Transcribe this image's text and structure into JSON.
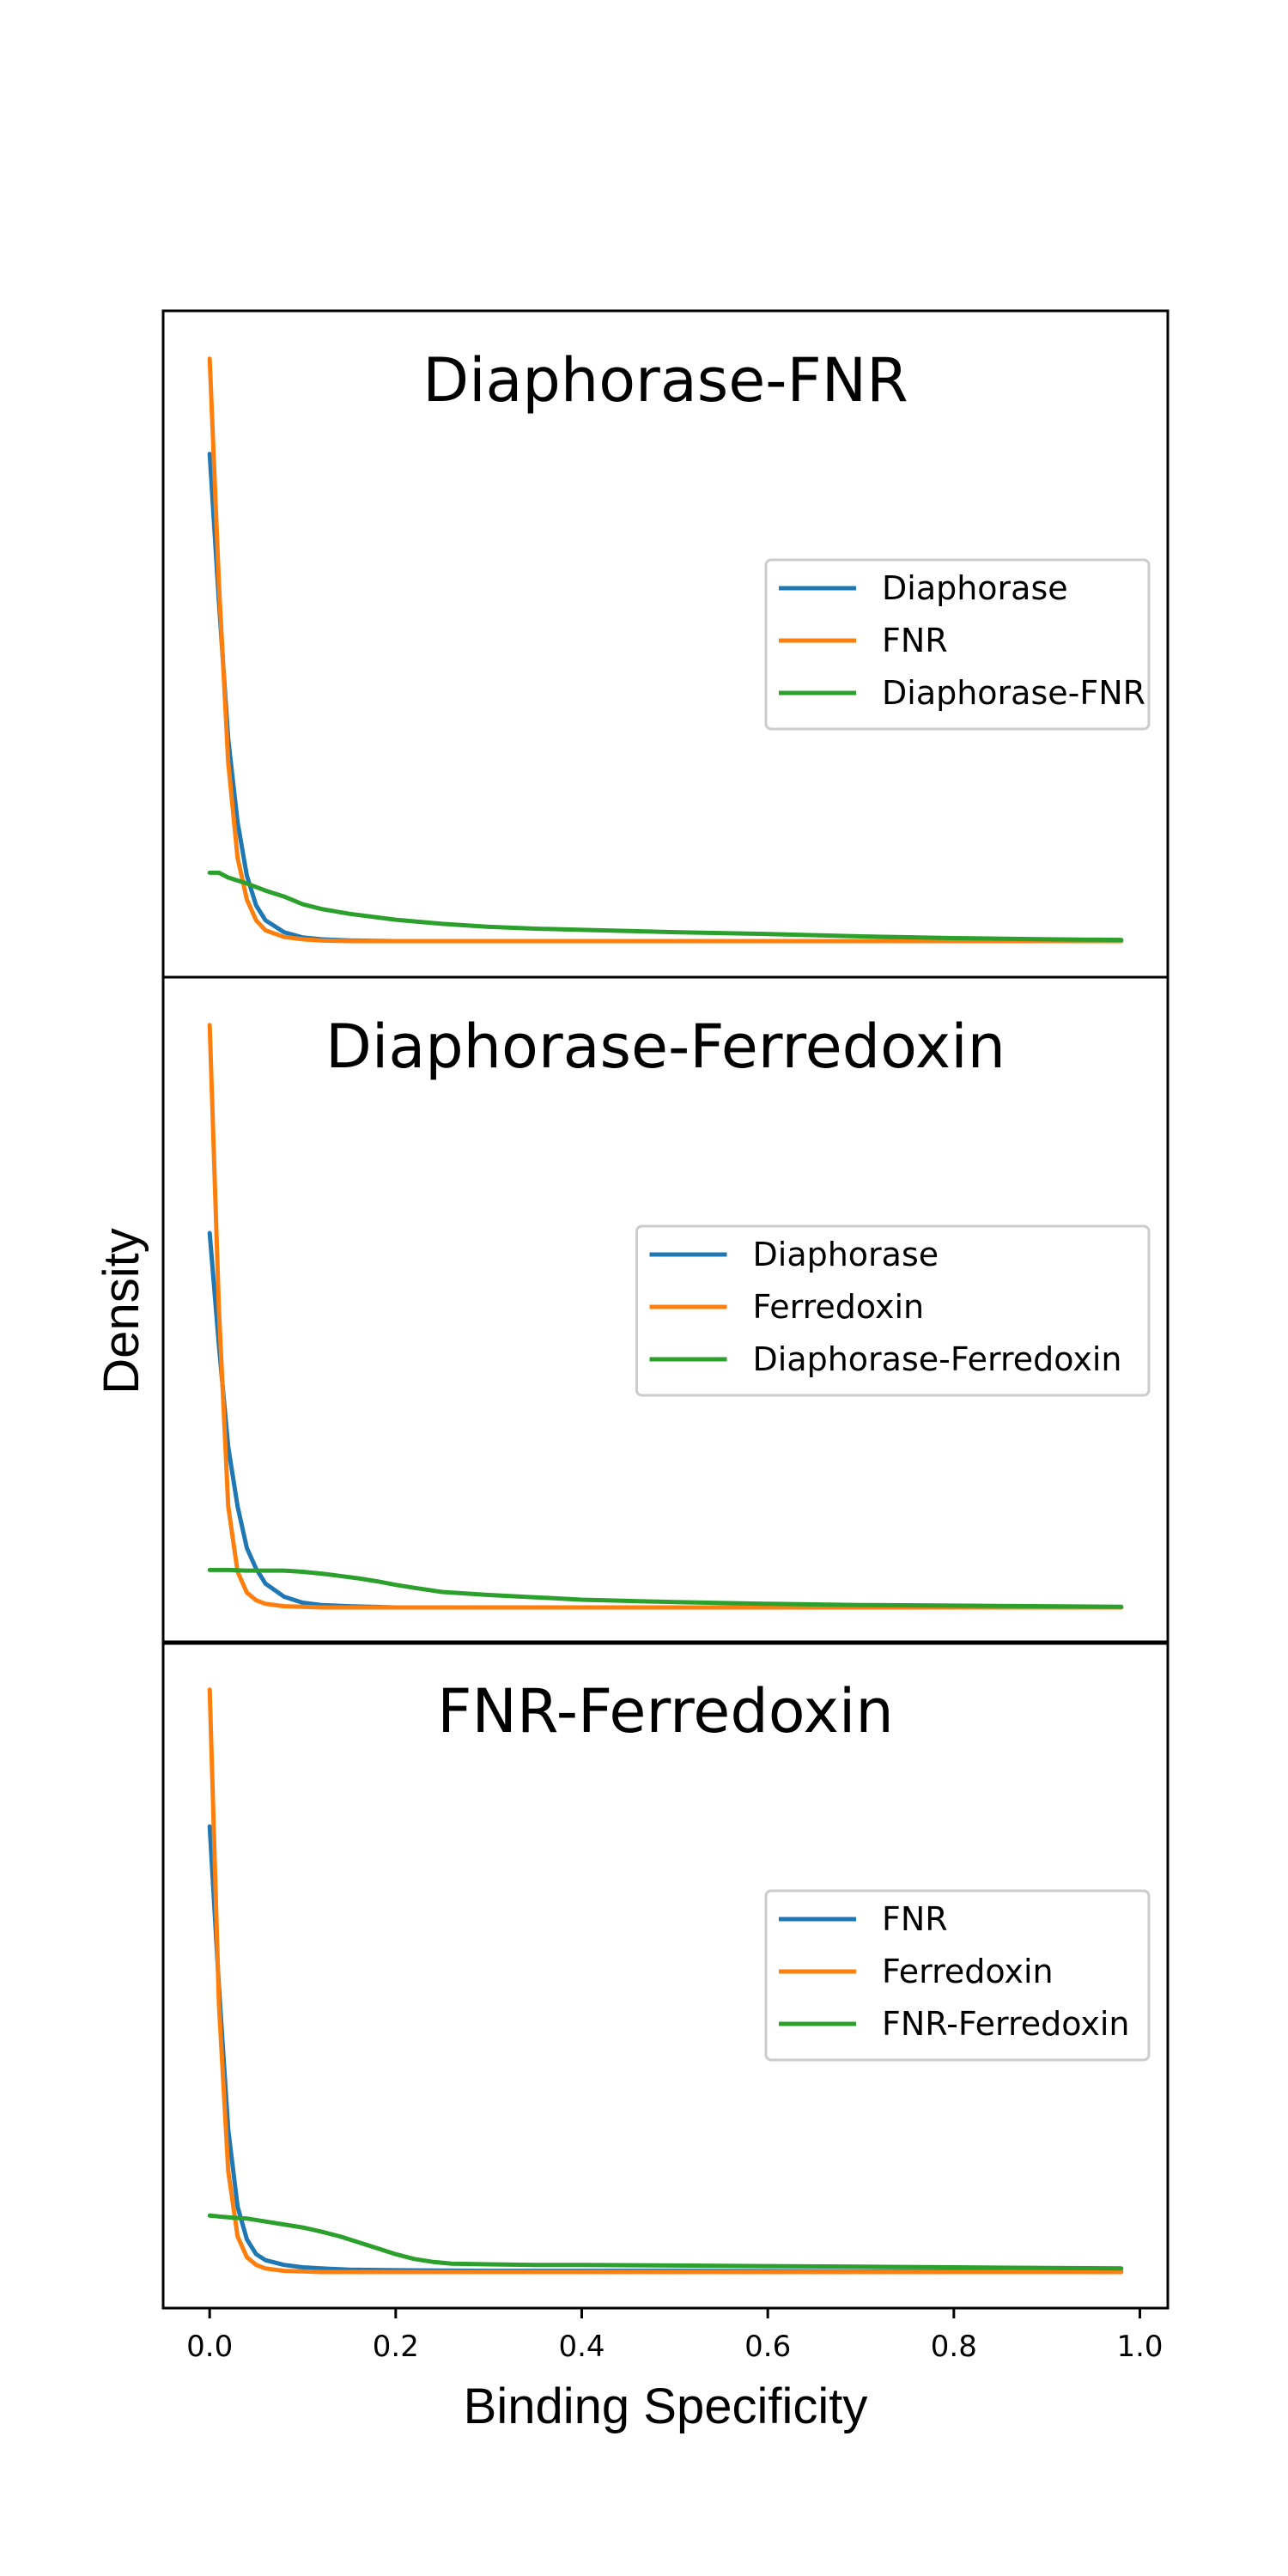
{
  "figure": {
    "xlabel": "Binding Specificity",
    "ylabel": "Density",
    "xlim": [
      -0.05,
      1.03
    ],
    "xticks": [
      "0.0",
      "0.2",
      "0.4",
      "0.6",
      "0.8",
      "1.0"
    ],
    "xtick_values": [
      0.0,
      0.2,
      0.4,
      0.6,
      0.8,
      1.0
    ]
  },
  "colors": {
    "blue": "#1f77b4",
    "orange": "#ff7f0e",
    "green": "#2ca02c"
  },
  "chart_data": [
    {
      "type": "line",
      "title": "Diaphorase-FNR",
      "legend_position": "center-right",
      "ylim": [
        0,
        1
      ],
      "series": [
        {
          "name": "Diaphorase",
          "color": "#1f77b4",
          "x": [
            0,
            0.01,
            0.02,
            0.03,
            0.04,
            0.05,
            0.06,
            0.08,
            0.1,
            0.12,
            0.15,
            0.2,
            0.3,
            0.5,
            0.7,
            0.98
          ],
          "y": [
            0.82,
            0.57,
            0.34,
            0.2,
            0.11,
            0.06,
            0.035,
            0.015,
            0.006,
            0.003,
            0.001,
            0,
            0,
            0,
            0,
            0
          ]
        },
        {
          "name": "FNR",
          "color": "#ff7f0e",
          "x": [
            0,
            0.01,
            0.02,
            0.03,
            0.04,
            0.05,
            0.06,
            0.08,
            0.1,
            0.12,
            0.15,
            0.2,
            0.3,
            0.5,
            0.7,
            0.98
          ],
          "y": [
            0.98,
            0.6,
            0.3,
            0.14,
            0.07,
            0.035,
            0.018,
            0.007,
            0.003,
            0.001,
            0,
            0,
            0,
            0,
            0,
            0
          ]
        },
        {
          "name": "Diaphorase-FNR",
          "color": "#2ca02c",
          "x": [
            0,
            0.01,
            0.02,
            0.04,
            0.06,
            0.08,
            0.1,
            0.12,
            0.15,
            0.2,
            0.25,
            0.3,
            0.35,
            0.4,
            0.5,
            0.6,
            0.7,
            0.8,
            0.9,
            0.98
          ],
          "y": [
            0.115,
            0.115,
            0.107,
            0.097,
            0.085,
            0.075,
            0.062,
            0.054,
            0.046,
            0.036,
            0.029,
            0.024,
            0.021,
            0.019,
            0.015,
            0.012,
            0.008,
            0.005,
            0.003,
            0.002
          ]
        }
      ]
    },
    {
      "type": "line",
      "title": "Diaphorase-Ferredoxin",
      "legend_position": "center-right",
      "ylim": [
        0,
        1
      ],
      "series": [
        {
          "name": "Diaphorase",
          "color": "#1f77b4",
          "x": [
            0,
            0.01,
            0.02,
            0.03,
            0.04,
            0.05,
            0.06,
            0.08,
            0.1,
            0.12,
            0.15,
            0.2,
            0.3,
            0.5,
            0.7,
            0.98
          ],
          "y": [
            0.63,
            0.44,
            0.27,
            0.17,
            0.1,
            0.065,
            0.04,
            0.018,
            0.008,
            0.004,
            0.002,
            0,
            0,
            0,
            0,
            0
          ]
        },
        {
          "name": "Ferredoxin",
          "color": "#ff7f0e",
          "x": [
            0,
            0.01,
            0.02,
            0.03,
            0.04,
            0.05,
            0.06,
            0.08,
            0.1,
            0.12,
            0.15,
            0.2,
            0.3,
            0.5,
            0.7,
            0.98
          ],
          "y": [
            0.98,
            0.5,
            0.17,
            0.06,
            0.025,
            0.012,
            0.006,
            0.002,
            0.001,
            0,
            0,
            0,
            0,
            0,
            0,
            0
          ]
        },
        {
          "name": "Diaphorase-Ferredoxin",
          "color": "#2ca02c",
          "x": [
            0,
            0.02,
            0.04,
            0.06,
            0.08,
            0.1,
            0.12,
            0.14,
            0.16,
            0.18,
            0.2,
            0.22,
            0.25,
            0.3,
            0.35,
            0.4,
            0.5,
            0.6,
            0.7,
            0.8,
            0.9,
            0.98
          ],
          "y": [
            0.063,
            0.063,
            0.062,
            0.062,
            0.062,
            0.06,
            0.057,
            0.053,
            0.049,
            0.044,
            0.038,
            0.033,
            0.026,
            0.021,
            0.017,
            0.013,
            0.009,
            0.006,
            0.004,
            0.003,
            0.002,
            0.001
          ]
        }
      ]
    },
    {
      "type": "line",
      "title": "FNR-Ferredoxin",
      "legend_position": "center-right",
      "ylim": [
        0,
        1
      ],
      "series": [
        {
          "name": "FNR",
          "color": "#1f77b4",
          "x": [
            0,
            0.01,
            0.02,
            0.03,
            0.04,
            0.05,
            0.06,
            0.08,
            0.1,
            0.12,
            0.15,
            0.2,
            0.3,
            0.5,
            0.7,
            0.98
          ],
          "y": [
            0.75,
            0.48,
            0.24,
            0.11,
            0.055,
            0.03,
            0.02,
            0.012,
            0.008,
            0.006,
            0.004,
            0.003,
            0.002,
            0.002,
            0.001,
            0.001
          ]
        },
        {
          "name": "Ferredoxin",
          "color": "#ff7f0e",
          "x": [
            0,
            0.01,
            0.02,
            0.03,
            0.04,
            0.05,
            0.06,
            0.08,
            0.1,
            0.12,
            0.15,
            0.2,
            0.3,
            0.5,
            0.7,
            0.98
          ],
          "y": [
            0.98,
            0.45,
            0.17,
            0.06,
            0.025,
            0.012,
            0.006,
            0.002,
            0.001,
            0,
            0,
            0,
            0,
            0,
            0,
            0
          ]
        },
        {
          "name": "FNR-Ferredoxin",
          "color": "#2ca02c",
          "x": [
            0,
            0.02,
            0.04,
            0.06,
            0.08,
            0.1,
            0.12,
            0.14,
            0.16,
            0.18,
            0.2,
            0.22,
            0.24,
            0.26,
            0.3,
            0.35,
            0.4,
            0.5,
            0.6,
            0.7,
            0.8,
            0.9,
            0.98
          ],
          "y": [
            0.095,
            0.092,
            0.09,
            0.085,
            0.08,
            0.075,
            0.068,
            0.06,
            0.05,
            0.04,
            0.03,
            0.022,
            0.017,
            0.014,
            0.013,
            0.012,
            0.012,
            0.011,
            0.01,
            0.009,
            0.008,
            0.007,
            0.006
          ]
        }
      ]
    }
  ]
}
